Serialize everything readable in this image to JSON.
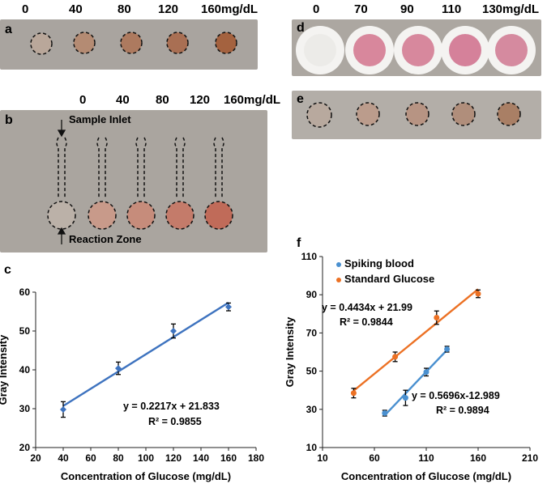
{
  "panels": {
    "a": {
      "label": "a",
      "concentrations": [
        "0",
        "40",
        "80",
        "120",
        "160mg/dL"
      ],
      "spot_colors": [
        "#b9a79a",
        "#b48b73",
        "#ad7a5f",
        "#a96f53",
        "#a4623f"
      ]
    },
    "b": {
      "label": "b",
      "concentrations": [
        "0",
        "40",
        "80",
        "120",
        "160mg/dL"
      ],
      "sample_inlet_label": "Sample Inlet",
      "reaction_zone_label": "Reaction Zone",
      "zone_colors": [
        "#bbb1a8",
        "#c89a8a",
        "#c68c7b",
        "#c47b6a",
        "#c06b59"
      ]
    },
    "c": {
      "label": "c",
      "equation": "y = 0.2217x + 21.833",
      "r2": "R² = 0.9855"
    },
    "d": {
      "label": "d",
      "concentrations": [
        "0",
        "70",
        "90",
        "110",
        "130mg/dL"
      ],
      "pad_colors": [
        "#ecebe8",
        "#d8879c",
        "#d7889d",
        "#d5819a",
        "#d58a9f"
      ]
    },
    "e": {
      "label": "e",
      "spot_colors": [
        "#b8a99e",
        "#bb9c8c",
        "#b79483",
        "#b08e7b",
        "#a97f65"
      ]
    },
    "f": {
      "label": "f",
      "legend_blood": "Spiking blood",
      "legend_standard": "Standard Glucose",
      "eq_standard": "y = 0.4434x + 21.99",
      "r2_standard": "R² = 0.9844",
      "eq_blood": "y = 0.5696x-12.989",
      "r2_blood": "R² = 0.9894"
    }
  },
  "colors": {
    "blue": "#4a90d0",
    "orange": "#ec7124",
    "photo_gray": "#a8a39e"
  },
  "chart_data": [
    {
      "id": "c",
      "type": "scatter",
      "xlabel": "Concentration of Glucose (mg/dL)",
      "ylabel": "Gray Intensity",
      "xlim": [
        20,
        180
      ],
      "ylim": [
        20,
        60
      ],
      "xticks": [
        20,
        40,
        60,
        80,
        100,
        120,
        140,
        160,
        180
      ],
      "yticks": [
        20,
        30,
        40,
        50,
        60
      ],
      "series": [
        {
          "name": "Gray intensity",
          "color": "#3e73bf",
          "x": [
            40,
            80,
            120,
            160
          ],
          "y": [
            29.8,
            40.4,
            50.0,
            56.2
          ],
          "err": [
            2.0,
            1.6,
            1.8,
            1.0
          ],
          "fit": {
            "slope": 0.2217,
            "intercept": 21.833,
            "from": 40,
            "to": 160
          }
        }
      ],
      "annotations": [
        "y = 0.2217x + 21.833",
        "R² = 0.9855"
      ]
    },
    {
      "id": "f",
      "type": "scatter",
      "xlabel": "Concentration of Glucose (mg/dL)",
      "ylabel": "Gray Intensity",
      "xlim": [
        10,
        210
      ],
      "ylim": [
        10,
        110
      ],
      "xticks": [
        10,
        60,
        110,
        160,
        210
      ],
      "yticks": [
        10,
        30,
        50,
        70,
        90,
        110
      ],
      "series": [
        {
          "name": "Spiking blood",
          "color": "#4a90d0",
          "x": [
            70,
            90,
            110,
            130
          ],
          "y": [
            28,
            36,
            49.5,
            61.5
          ],
          "err": [
            1.5,
            4.0,
            2.0,
            1.5
          ],
          "fit": {
            "slope": 0.5696,
            "intercept": -12.989,
            "from": 70,
            "to": 130
          }
        },
        {
          "name": "Standard Glucose",
          "color": "#ec7124",
          "x": [
            40,
            80,
            120,
            160
          ],
          "y": [
            38.5,
            57.5,
            78,
            90.5
          ],
          "err": [
            2.5,
            2.5,
            3.5,
            2.0
          ],
          "fit": {
            "slope": 0.4434,
            "intercept": 21.99,
            "from": 40,
            "to": 160
          }
        }
      ],
      "legend": [
        "Spiking blood",
        "Standard Glucose"
      ],
      "annotations": [
        "y = 0.4434x + 21.99",
        "R² = 0.9844",
        "y = 0.5696x-12.989",
        "R² = 0.9894"
      ]
    }
  ]
}
